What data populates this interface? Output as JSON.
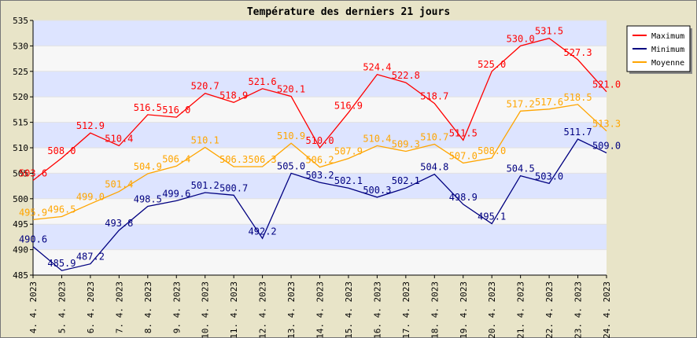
{
  "chart_data": {
    "type": "line",
    "title": "Température des derniers 21 jours",
    "xlabel": "",
    "ylabel": "",
    "ylim": [
      485,
      535
    ],
    "yticks": [
      485,
      490,
      495,
      500,
      505,
      510,
      515,
      520,
      525,
      530,
      535
    ],
    "grid": true,
    "legend_position": "top-right",
    "categories": [
      "4. 4. 2023",
      "5. 4. 2023",
      "6. 4. 2023",
      "7. 4. 2023",
      "8. 4. 2023",
      "9. 4. 2023",
      "10. 4. 2023",
      "11. 4. 2023",
      "12. 4. 2023",
      "13. 4. 2023",
      "14. 4. 2023",
      "15. 4. 2023",
      "16. 4. 2023",
      "17. 4. 2023",
      "18. 4. 2023",
      "19. 4. 2023",
      "20. 4. 2023",
      "21. 4. 2023",
      "22. 4. 2023",
      "23. 4. 2023",
      "24. 4. 2023"
    ],
    "series": [
      {
        "name": "Maximum",
        "color": "#ff0000",
        "values": [
          503.6,
          508.0,
          512.9,
          510.4,
          516.5,
          516.0,
          520.7,
          518.9,
          521.6,
          520.1,
          510.0,
          516.9,
          524.4,
          522.8,
          518.7,
          511.5,
          525.0,
          530.0,
          531.5,
          527.3,
          521.0
        ]
      },
      {
        "name": "Minimum",
        "color": "#000080",
        "values": [
          490.6,
          485.9,
          487.2,
          493.8,
          498.5,
          499.6,
          501.2,
          500.7,
          492.2,
          505.0,
          503.2,
          502.1,
          500.3,
          502.1,
          504.8,
          498.9,
          495.1,
          504.5,
          503.0,
          511.7,
          509.0
        ]
      },
      {
        "name": "Moyenne",
        "color": "#ffa500",
        "values": [
          495.9,
          496.5,
          499.0,
          501.4,
          504.9,
          506.4,
          510.1,
          506.3,
          506.3,
          510.9,
          506.2,
          507.9,
          510.4,
          509.3,
          510.7,
          507.0,
          508.0,
          517.2,
          517.6,
          518.5,
          513.3
        ]
      }
    ],
    "colors": {
      "band": "#dde4ff",
      "background": "#f7f7f7",
      "frame": "#e8e4c8"
    }
  }
}
